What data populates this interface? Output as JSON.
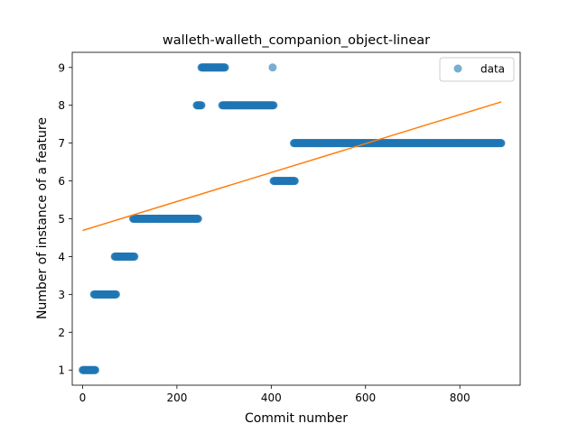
{
  "chart_data": {
    "type": "scatter",
    "title": "walleth-walleth_companion_object-linear",
    "xlabel": "Commit number",
    "ylabel": "Number of instance of a feature",
    "xlim": [
      -22,
      928
    ],
    "ylim": [
      0.6,
      9.4
    ],
    "xticks": [
      0,
      200,
      400,
      600,
      800
    ],
    "yticks": [
      1,
      2,
      3,
      4,
      5,
      6,
      7,
      8,
      9
    ],
    "grid": false,
    "legend": {
      "entries": [
        "data"
      ],
      "placement": "top-right"
    },
    "colors": {
      "points": "#1f77b4",
      "fit_line": "#ff7f0e"
    },
    "series": [
      {
        "name": "data",
        "kind": "scatter",
        "segments": [
          {
            "x_start": 0,
            "x_end": 27,
            "y": 1
          },
          {
            "x_start": 24,
            "x_end": 71,
            "y": 3
          },
          {
            "x_start": 68,
            "x_end": 110,
            "y": 4
          },
          {
            "x_start": 107,
            "x_end": 245,
            "y": 5
          },
          {
            "x_start": 242,
            "x_end": 252,
            "y": 8
          },
          {
            "x_start": 252,
            "x_end": 302,
            "y": 9
          },
          {
            "x_start": 296,
            "x_end": 405,
            "y": 8
          },
          {
            "x_start": 403,
            "x_end": 403,
            "y": 9
          },
          {
            "x_start": 405,
            "x_end": 450,
            "y": 6
          },
          {
            "x_start": 448,
            "x_end": 888,
            "y": 7
          }
        ]
      },
      {
        "name": "",
        "kind": "line",
        "x": [
          0,
          888
        ],
        "y": [
          4.69,
          8.09
        ]
      }
    ]
  }
}
